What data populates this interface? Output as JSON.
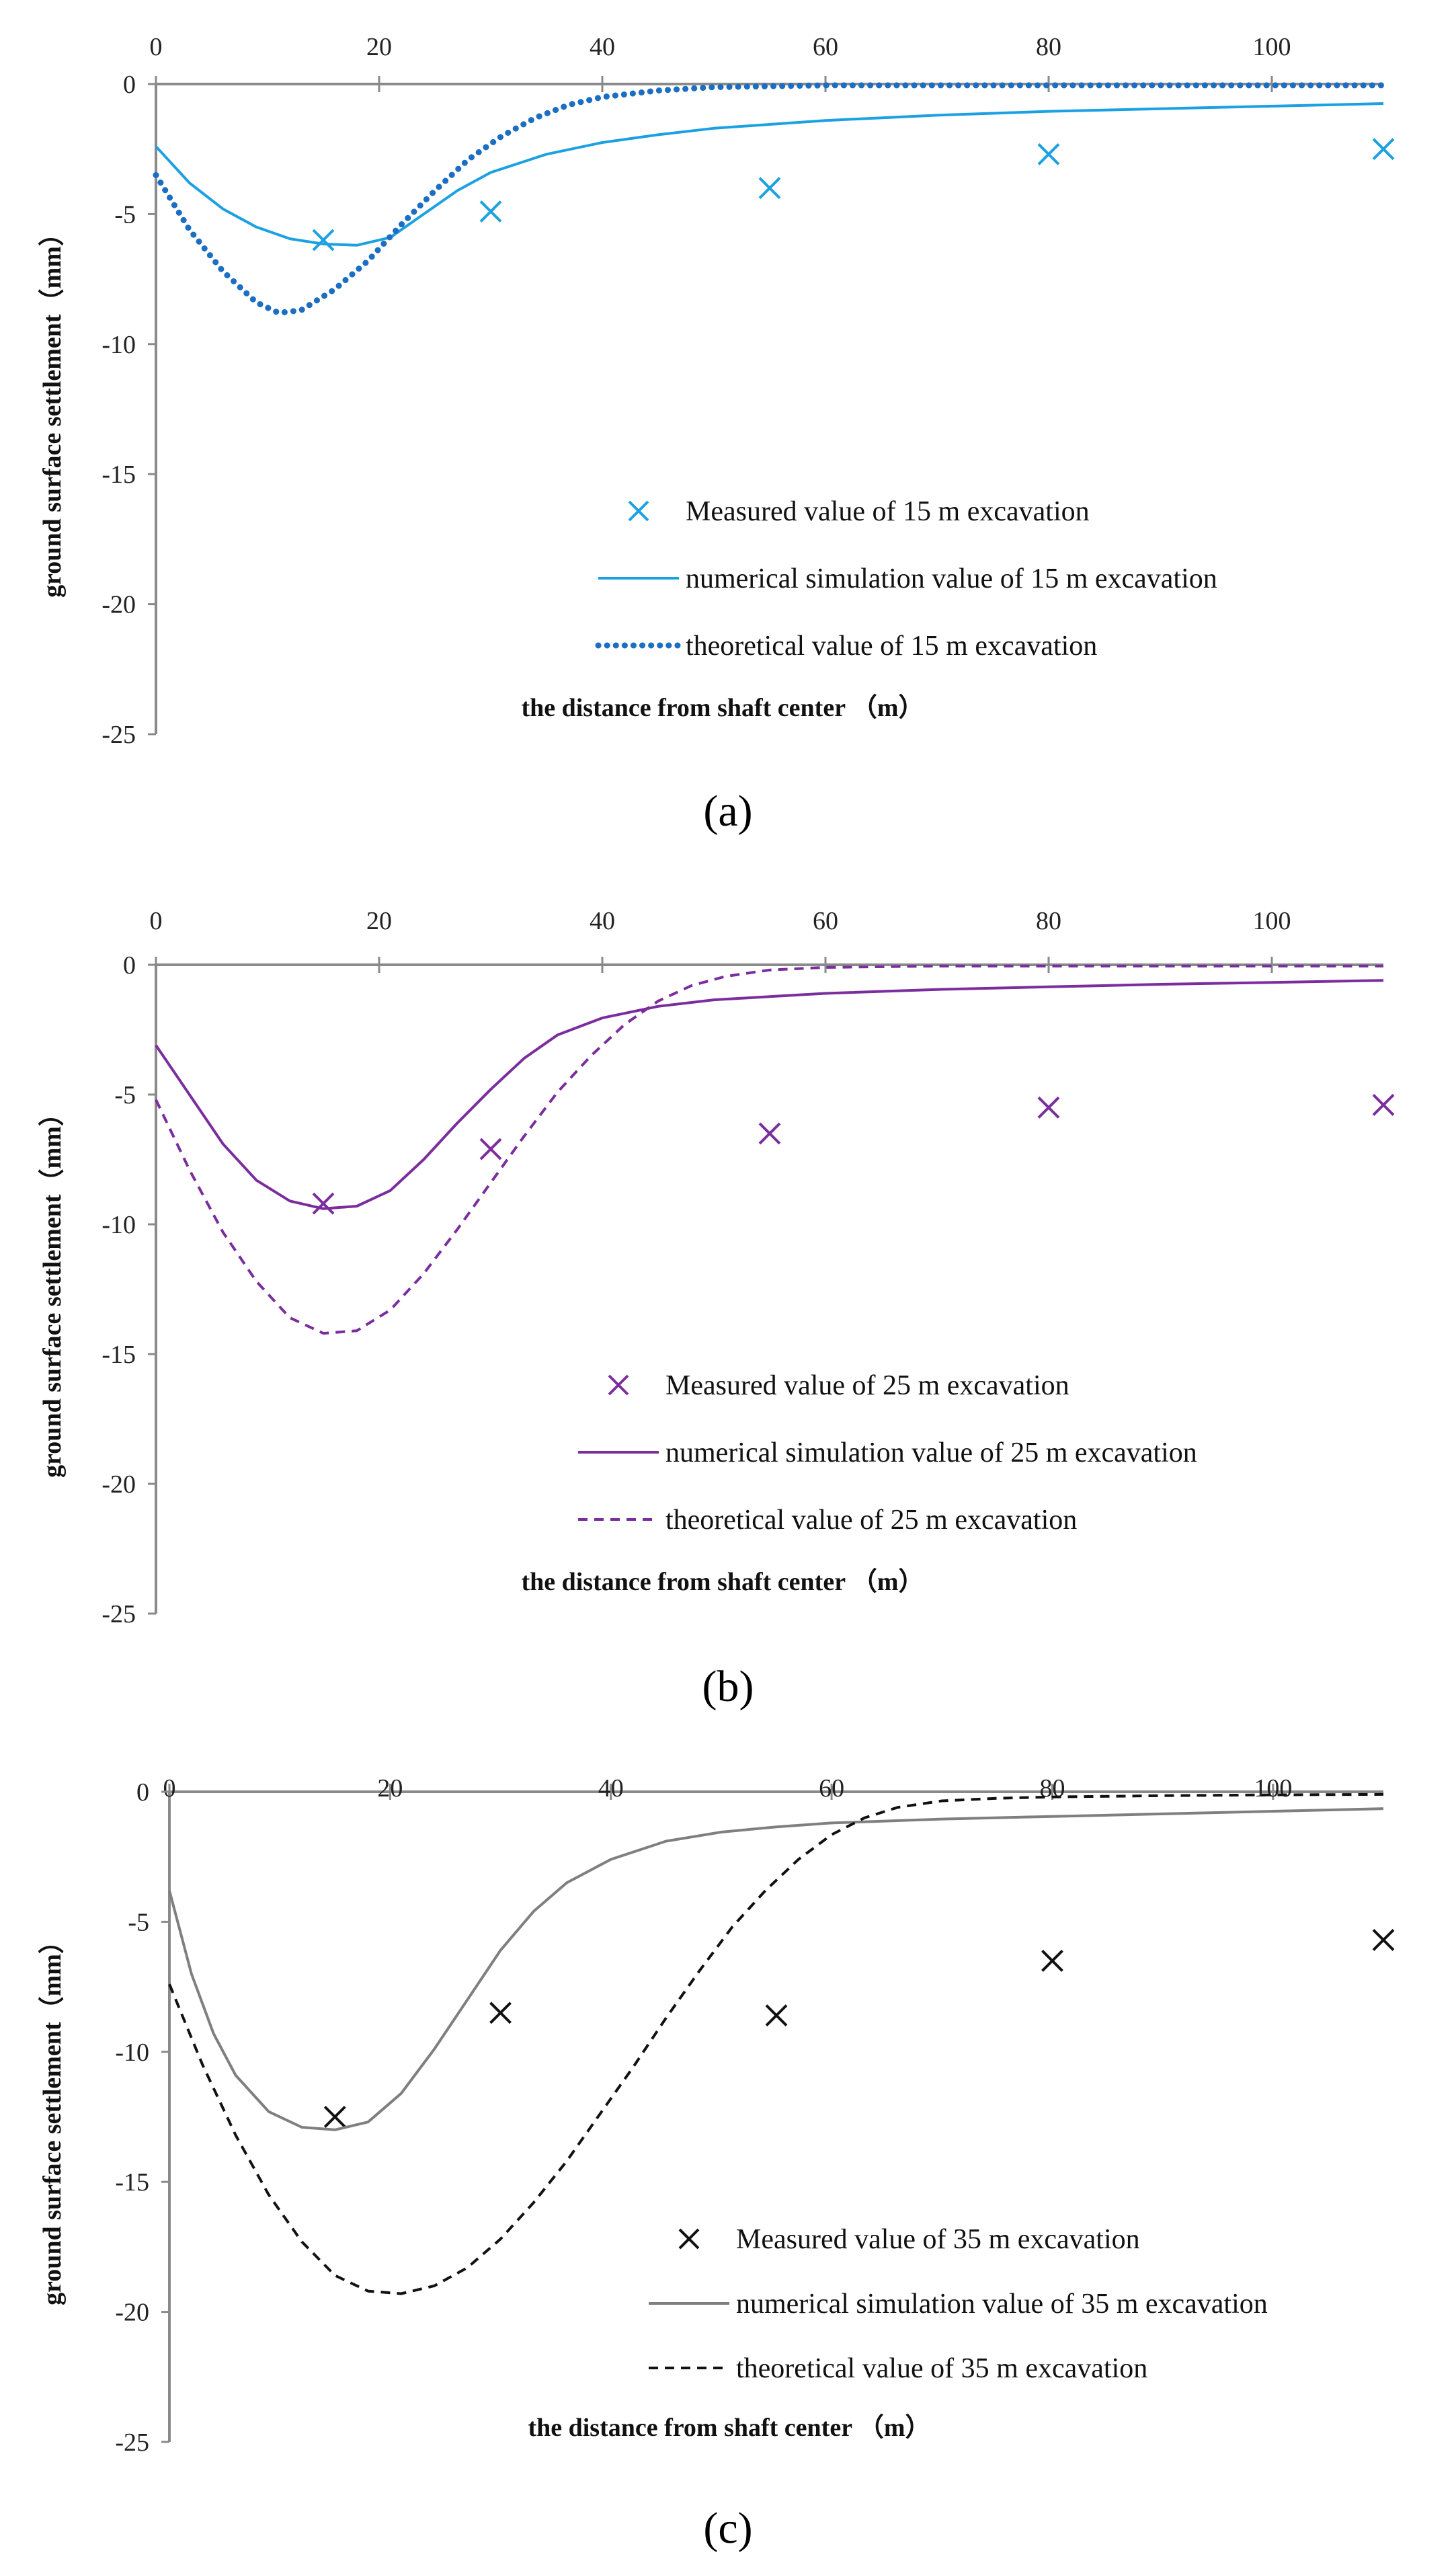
{
  "chart_data": [
    {
      "type": "line",
      "panel_label": "(a)",
      "xlabel": "the distance from shaft center （m）",
      "ylabel": "ground surface settlement（mm）",
      "xlim": [
        0,
        110
      ],
      "ylim": [
        -25,
        0
      ],
      "x_ticks": [
        0,
        20,
        40,
        60,
        80,
        100
      ],
      "y_ticks": [
        0,
        -5,
        -10,
        -15,
        -20,
        -25
      ],
      "color": "#1BA1E2",
      "theory_color": "#1B6EC2",
      "theory_style": "dotted",
      "legend_position": "lower-right",
      "series": [
        {
          "name": "Measured value of 15 m excavation",
          "kind": "marker",
          "x": [
            15,
            30,
            55,
            80,
            110
          ],
          "y": [
            -6.0,
            -4.9,
            -4.0,
            -2.7,
            -2.5
          ]
        },
        {
          "name": "numerical simulation value of 15 m excavation",
          "kind": "line",
          "x": [
            0,
            3,
            6,
            9,
            12,
            15,
            18,
            21,
            24,
            27,
            30,
            35,
            40,
            45,
            50,
            60,
            70,
            80,
            90,
            100,
            110
          ],
          "y": [
            -2.4,
            -3.8,
            -4.8,
            -5.5,
            -5.95,
            -6.15,
            -6.2,
            -5.9,
            -5.0,
            -4.1,
            -3.4,
            -2.7,
            -2.25,
            -1.95,
            -1.7,
            -1.4,
            -1.2,
            -1.05,
            -0.95,
            -0.85,
            -0.75
          ]
        },
        {
          "name": "theoretical value of 15 m excavation",
          "kind": "line",
          "x": [
            0,
            3,
            6,
            9,
            11,
            13,
            16,
            19,
            22,
            25,
            28,
            31,
            34,
            37,
            40,
            45,
            50,
            60,
            70,
            80,
            90,
            100,
            110
          ],
          "y": [
            -3.5,
            -5.6,
            -7.2,
            -8.4,
            -8.8,
            -8.7,
            -7.9,
            -6.8,
            -5.4,
            -4.1,
            -2.9,
            -2.0,
            -1.3,
            -0.8,
            -0.5,
            -0.25,
            -0.12,
            -0.05,
            -0.05,
            -0.05,
            -0.05,
            -0.05,
            -0.05
          ]
        }
      ]
    },
    {
      "type": "line",
      "panel_label": "(b)",
      "xlabel": "the distance from shaft center （m）",
      "ylabel": "ground surface settlement（mm）",
      "xlim": [
        0,
        110
      ],
      "ylim": [
        -25,
        0
      ],
      "x_ticks": [
        0,
        20,
        40,
        60,
        80,
        100
      ],
      "y_ticks": [
        0,
        -5,
        -10,
        -15,
        -20,
        -25
      ],
      "color": "#7B2D9E",
      "theory_color": "#7B2D9E",
      "theory_style": "dashed",
      "legend_position": "lower-right",
      "series": [
        {
          "name": "Measured value of 25 m excavation",
          "kind": "marker",
          "x": [
            15,
            30,
            55,
            80,
            110
          ],
          "y": [
            -9.2,
            -7.1,
            -6.5,
            -5.5,
            -5.4
          ]
        },
        {
          "name": "numerical simulation value of 25 m excavation",
          "kind": "line",
          "x": [
            0,
            3,
            6,
            9,
            12,
            15,
            18,
            21,
            24,
            27,
            30,
            33,
            36,
            40,
            45,
            50,
            60,
            70,
            80,
            90,
            100,
            110
          ],
          "y": [
            -3.1,
            -5.0,
            -6.9,
            -8.3,
            -9.1,
            -9.4,
            -9.3,
            -8.7,
            -7.5,
            -6.1,
            -4.8,
            -3.6,
            -2.7,
            -2.05,
            -1.6,
            -1.35,
            -1.1,
            -0.95,
            -0.85,
            -0.75,
            -0.68,
            -0.6
          ]
        },
        {
          "name": "theoretical value of 25 m excavation",
          "kind": "line",
          "x": [
            0,
            3,
            6,
            9,
            12,
            15,
            18,
            21,
            24,
            27,
            30,
            33,
            36,
            39,
            42,
            45,
            48,
            51,
            55,
            60,
            70,
            80,
            90,
            100,
            110
          ],
          "y": [
            -5.2,
            -7.9,
            -10.3,
            -12.2,
            -13.6,
            -14.2,
            -14.1,
            -13.3,
            -11.9,
            -10.2,
            -8.4,
            -6.6,
            -4.9,
            -3.5,
            -2.3,
            -1.4,
            -0.8,
            -0.45,
            -0.2,
            -0.1,
            -0.05,
            -0.05,
            -0.05,
            -0.05,
            -0.05
          ]
        }
      ]
    },
    {
      "type": "line",
      "panel_label": "(c)",
      "xlabel": "the distance from shaft center （m）",
      "ylabel": "ground surface settlement（mm）",
      "xlim": [
        0,
        110
      ],
      "ylim": [
        -25,
        0
      ],
      "x_ticks": [
        0,
        20,
        40,
        60,
        80,
        100
      ],
      "y_ticks": [
        0,
        -5,
        -10,
        -15,
        -20,
        -25
      ],
      "color": "#7F7F7F",
      "marker_color": "#111111",
      "theory_color": "#111111",
      "theory_style": "dashed",
      "legend_position": "lower-right",
      "series": [
        {
          "name": "Measured value of 35 m excavation",
          "kind": "marker",
          "x": [
            15,
            30,
            55,
            80,
            110
          ],
          "y": [
            -12.5,
            -8.5,
            -8.6,
            -6.5,
            -5.7
          ]
        },
        {
          "name": "numerical simulation value of 35 m excavation",
          "kind": "line",
          "x": [
            0,
            2,
            4,
            6,
            9,
            12,
            15,
            18,
            21,
            24,
            27,
            30,
            33,
            36,
            40,
            45,
            50,
            55,
            60,
            70,
            80,
            90,
            100,
            110
          ],
          "y": [
            -3.8,
            -7.0,
            -9.3,
            -10.9,
            -12.3,
            -12.9,
            -13.0,
            -12.7,
            -11.6,
            -9.9,
            -8.0,
            -6.1,
            -4.6,
            -3.5,
            -2.6,
            -1.9,
            -1.55,
            -1.35,
            -1.2,
            -1.05,
            -0.95,
            -0.85,
            -0.75,
            -0.65
          ]
        },
        {
          "name": "theoretical value of 35 m excavation",
          "kind": "line",
          "x": [
            0,
            3,
            6,
            9,
            12,
            15,
            18,
            21,
            24,
            27,
            30,
            33,
            36,
            39,
            42,
            45,
            48,
            51,
            54,
            57,
            60,
            63,
            66,
            70,
            75,
            80,
            90,
            100,
            110
          ],
          "y": [
            -7.4,
            -10.5,
            -13.2,
            -15.5,
            -17.3,
            -18.6,
            -19.2,
            -19.3,
            -19.0,
            -18.3,
            -17.2,
            -15.8,
            -14.2,
            -12.4,
            -10.6,
            -8.7,
            -6.9,
            -5.2,
            -3.8,
            -2.6,
            -1.65,
            -1.0,
            -0.6,
            -0.35,
            -0.25,
            -0.2,
            -0.15,
            -0.12,
            -0.1
          ]
        }
      ]
    }
  ]
}
